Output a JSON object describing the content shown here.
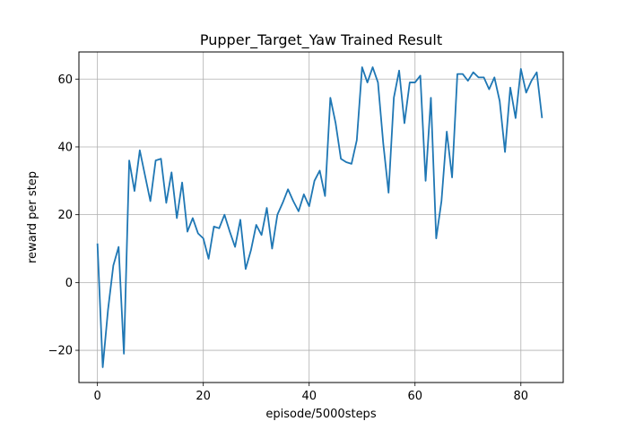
{
  "chart_data": {
    "type": "line",
    "title": "Pupper_Target_Yaw Trained Result",
    "xlabel": "episode/5000steps",
    "ylabel": "reward per step",
    "xlim": [
      -3.5,
      88
    ],
    "ylim": [
      -29.5,
      68
    ],
    "xticks": [
      0,
      20,
      40,
      60,
      80
    ],
    "yticks": [
      -20,
      0,
      20,
      40,
      60
    ],
    "xtick_labels": [
      "0",
      "20",
      "40",
      "60",
      "80"
    ],
    "ytick_labels": [
      "−20",
      "0",
      "20",
      "40",
      "60"
    ],
    "grid": true,
    "line_color": "#1f77b4",
    "series": [
      {
        "x": [
          0,
          1,
          2,
          3,
          4,
          5,
          6,
          7,
          8,
          9,
          10,
          11,
          12,
          13,
          14,
          15,
          16,
          17,
          18,
          19,
          20,
          21,
          22,
          23,
          24,
          25,
          26,
          27,
          28,
          29,
          30,
          31,
          32,
          33,
          34,
          35,
          36,
          37,
          38,
          39,
          40,
          41,
          42,
          43,
          44,
          45,
          46,
          47,
          48,
          49,
          50,
          51,
          52,
          53,
          54,
          55,
          56,
          57,
          58,
          59,
          60,
          61,
          62,
          63,
          64,
          65,
          66,
          67,
          68,
          69,
          70,
          71,
          72,
          73,
          74,
          75,
          76,
          77,
          78,
          79,
          80,
          81,
          82,
          83,
          84
        ],
        "values": [
          11.5,
          -25,
          -8,
          5,
          10.5,
          -21,
          36,
          27,
          39,
          31.5,
          24,
          36,
          36.5,
          23.5,
          32.5,
          19,
          29.5,
          15,
          19,
          14.5,
          13,
          7,
          16.5,
          16,
          20,
          15,
          10.5,
          18.5,
          4,
          9.5,
          17,
          14,
          22,
          10,
          20,
          23.5,
          27.5,
          24,
          21,
          26,
          22.5,
          30,
          33,
          25.5,
          54.5,
          47,
          36.5,
          35.5,
          35,
          42,
          63.5,
          59,
          63.5,
          59,
          41,
          26.5,
          54.5,
          62.5,
          47,
          59,
          59,
          61,
          30,
          54.5,
          13,
          24,
          44.5,
          31,
          61.5,
          61.5,
          59.5,
          62,
          60.5,
          60.5,
          57,
          60.5,
          53.5,
          38.5,
          57.5,
          48.5,
          63,
          56,
          59.5,
          62,
          48.5
        ]
      }
    ]
  }
}
